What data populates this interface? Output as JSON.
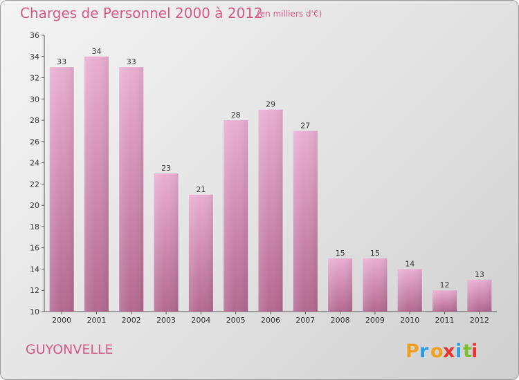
{
  "colors": {
    "accent": "#d35a86",
    "bar_light": "#e9aed1",
    "bar_dark": "#b3698f"
  },
  "header": {
    "title": "Charges de Personnel 2000 à 2012",
    "subtitle": "(en milliers d'€)"
  },
  "commune": "GUYONVELLE",
  "logo": {
    "letters": [
      "P",
      "r",
      "o",
      "x",
      "i",
      "t",
      "i"
    ],
    "colors": [
      "#f0a020",
      "#2d9be0",
      "#f0a020",
      "#e8322e",
      "#2d9be0",
      "#7bbf2e",
      "#e8322e"
    ]
  },
  "chart_data": {
    "type": "bar",
    "categories": [
      "2000",
      "2001",
      "2002",
      "2003",
      "2004",
      "2005",
      "2006",
      "2007",
      "2008",
      "2009",
      "2010",
      "2011",
      "2012"
    ],
    "values": [
      33,
      34,
      33,
      23,
      21,
      28,
      29,
      27,
      15,
      15,
      14,
      12,
      13
    ],
    "ylim": [
      10,
      36
    ],
    "yticks": [
      10,
      12,
      14,
      16,
      18,
      20,
      22,
      24,
      26,
      28,
      30,
      32,
      34,
      36
    ],
    "grid": false,
    "legend": "none"
  }
}
